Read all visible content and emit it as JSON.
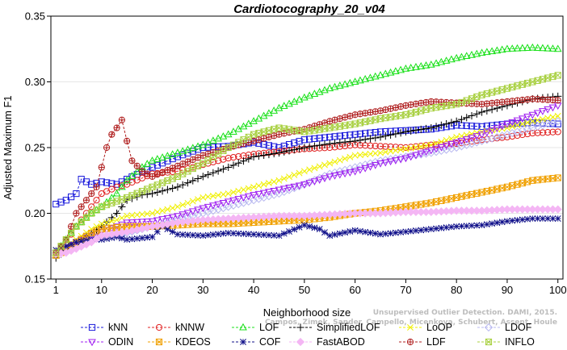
{
  "chart_data": {
    "type": "line",
    "title": "Cardiotocography_20_v04",
    "xlabel": "Neighborhood size",
    "ylabel": "Adjusted Maximum F1",
    "xlim": [
      0,
      101
    ],
    "ylim": [
      0.15,
      0.35
    ],
    "x_ticks": [
      "1",
      "10",
      "20",
      "30",
      "40",
      "50",
      "60",
      "70",
      "80",
      "90",
      "100"
    ],
    "x_tick_values": [
      1,
      10,
      20,
      30,
      40,
      50,
      60,
      70,
      80,
      90,
      100
    ],
    "y_ticks": [
      "0.15",
      "0.20",
      "0.25",
      "0.30",
      "0.35"
    ],
    "y_tick_values": [
      0.15,
      0.2,
      0.25,
      0.3,
      0.35
    ],
    "legend_position": "bottom",
    "series": [
      {
        "name": "kNN",
        "color": "#1a1adb",
        "marker": "square",
        "points": [
          [
            1,
            0.207
          ],
          [
            3,
            0.21
          ],
          [
            5,
            0.215
          ],
          [
            6,
            0.226
          ],
          [
            8,
            0.222
          ],
          [
            10,
            0.224
          ],
          [
            13,
            0.222
          ],
          [
            15,
            0.226
          ],
          [
            20,
            0.235
          ],
          [
            25,
            0.243
          ],
          [
            30,
            0.25
          ],
          [
            35,
            0.251
          ],
          [
            40,
            0.254
          ],
          [
            45,
            0.25
          ],
          [
            50,
            0.256
          ],
          [
            55,
            0.258
          ],
          [
            60,
            0.26
          ],
          [
            65,
            0.262
          ],
          [
            70,
            0.263
          ],
          [
            75,
            0.264
          ],
          [
            80,
            0.267
          ],
          [
            85,
            0.266
          ],
          [
            90,
            0.268
          ],
          [
            95,
            0.269
          ],
          [
            100,
            0.268
          ]
        ]
      },
      {
        "name": "kNNW",
        "color": "#e02020",
        "marker": "circle",
        "points": [
          [
            1,
            0.17
          ],
          [
            3,
            0.178
          ],
          [
            5,
            0.19
          ],
          [
            8,
            0.205
          ],
          [
            10,
            0.215
          ],
          [
            13,
            0.22
          ],
          [
            15,
            0.222
          ],
          [
            20,
            0.23
          ],
          [
            25,
            0.232
          ],
          [
            30,
            0.237
          ],
          [
            35,
            0.242
          ],
          [
            40,
            0.245
          ],
          [
            45,
            0.247
          ],
          [
            50,
            0.249
          ],
          [
            55,
            0.25
          ],
          [
            60,
            0.252
          ],
          [
            65,
            0.251
          ],
          [
            70,
            0.25
          ],
          [
            75,
            0.252
          ],
          [
            80,
            0.253
          ],
          [
            85,
            0.256
          ],
          [
            90,
            0.258
          ],
          [
            95,
            0.261
          ],
          [
            100,
            0.262
          ]
        ]
      },
      {
        "name": "LOF",
        "color": "#18e018",
        "marker": "triangle",
        "points": [
          [
            1,
            0.17
          ],
          [
            3,
            0.18
          ],
          [
            5,
            0.19
          ],
          [
            8,
            0.2
          ],
          [
            10,
            0.205
          ],
          [
            13,
            0.215
          ],
          [
            15,
            0.225
          ],
          [
            18,
            0.235
          ],
          [
            20,
            0.24
          ],
          [
            25,
            0.246
          ],
          [
            30,
            0.252
          ],
          [
            35,
            0.26
          ],
          [
            40,
            0.27
          ],
          [
            45,
            0.28
          ],
          [
            50,
            0.288
          ],
          [
            55,
            0.295
          ],
          [
            60,
            0.3
          ],
          [
            65,
            0.305
          ],
          [
            70,
            0.31
          ],
          [
            75,
            0.313
          ],
          [
            80,
            0.318
          ],
          [
            85,
            0.322
          ],
          [
            90,
            0.325
          ],
          [
            95,
            0.326
          ],
          [
            100,
            0.325
          ]
        ]
      },
      {
        "name": "SimplifiedLOF",
        "color": "#000000",
        "marker": "plus",
        "points": [
          [
            1,
            0.166
          ],
          [
            3,
            0.172
          ],
          [
            5,
            0.178
          ],
          [
            8,
            0.185
          ],
          [
            10,
            0.19
          ],
          [
            13,
            0.2
          ],
          [
            15,
            0.21
          ],
          [
            18,
            0.214
          ],
          [
            20,
            0.215
          ],
          [
            25,
            0.22
          ],
          [
            30,
            0.228
          ],
          [
            35,
            0.235
          ],
          [
            40,
            0.243
          ],
          [
            45,
            0.246
          ],
          [
            50,
            0.25
          ],
          [
            55,
            0.253
          ],
          [
            60,
            0.255
          ],
          [
            65,
            0.258
          ],
          [
            70,
            0.262
          ],
          [
            75,
            0.265
          ],
          [
            80,
            0.27
          ],
          [
            85,
            0.277
          ],
          [
            90,
            0.282
          ],
          [
            95,
            0.287
          ],
          [
            100,
            0.289
          ]
        ]
      },
      {
        "name": "LoOP",
        "color": "#f0f000",
        "marker": "x",
        "points": [
          [
            1,
            0.172
          ],
          [
            3,
            0.175
          ],
          [
            5,
            0.18
          ],
          [
            8,
            0.188
          ],
          [
            10,
            0.192
          ],
          [
            13,
            0.195
          ],
          [
            15,
            0.198
          ],
          [
            20,
            0.2
          ],
          [
            25,
            0.205
          ],
          [
            30,
            0.212
          ],
          [
            35,
            0.215
          ],
          [
            40,
            0.22
          ],
          [
            45,
            0.225
          ],
          [
            50,
            0.232
          ],
          [
            55,
            0.238
          ],
          [
            60,
            0.244
          ],
          [
            65,
            0.246
          ],
          [
            70,
            0.249
          ],
          [
            75,
            0.252
          ],
          [
            80,
            0.258
          ],
          [
            85,
            0.262
          ],
          [
            90,
            0.265
          ],
          [
            95,
            0.27
          ],
          [
            100,
            0.274
          ]
        ]
      },
      {
        "name": "LDOF",
        "color": "#b8b8f0",
        "marker": "diamond",
        "points": [
          [
            1,
            0.17
          ],
          [
            3,
            0.172
          ],
          [
            5,
            0.175
          ],
          [
            8,
            0.18
          ],
          [
            10,
            0.183
          ],
          [
            15,
            0.185
          ],
          [
            20,
            0.19
          ],
          [
            25,
            0.195
          ],
          [
            30,
            0.2
          ],
          [
            35,
            0.205
          ],
          [
            40,
            0.21
          ],
          [
            45,
            0.215
          ],
          [
            50,
            0.222
          ],
          [
            55,
            0.23
          ],
          [
            60,
            0.235
          ],
          [
            65,
            0.24
          ],
          [
            70,
            0.243
          ],
          [
            75,
            0.246
          ],
          [
            80,
            0.25
          ],
          [
            85,
            0.255
          ],
          [
            90,
            0.26
          ],
          [
            95,
            0.265
          ],
          [
            100,
            0.27
          ]
        ]
      },
      {
        "name": "ODIN",
        "color": "#a020f0",
        "marker": "triangle-down",
        "points": [
          [
            1,
            0.17
          ],
          [
            3,
            0.174
          ],
          [
            5,
            0.178
          ],
          [
            8,
            0.183
          ],
          [
            10,
            0.186
          ],
          [
            13,
            0.19
          ],
          [
            15,
            0.193
          ],
          [
            20,
            0.194
          ],
          [
            25,
            0.198
          ],
          [
            30,
            0.204
          ],
          [
            35,
            0.209
          ],
          [
            40,
            0.214
          ],
          [
            45,
            0.218
          ],
          [
            50,
            0.222
          ],
          [
            55,
            0.228
          ],
          [
            60,
            0.232
          ],
          [
            65,
            0.238
          ],
          [
            70,
            0.242
          ],
          [
            75,
            0.248
          ],
          [
            80,
            0.254
          ],
          [
            85,
            0.26
          ],
          [
            90,
            0.268
          ],
          [
            95,
            0.275
          ],
          [
            100,
            0.282
          ]
        ]
      },
      {
        "name": "KDEOS",
        "color": "#f0a000",
        "marker": "square-x",
        "points": [
          [
            1,
            0.168
          ],
          [
            3,
            0.172
          ],
          [
            5,
            0.178
          ],
          [
            8,
            0.185
          ],
          [
            10,
            0.188
          ],
          [
            15,
            0.19
          ],
          [
            20,
            0.19
          ],
          [
            25,
            0.191
          ],
          [
            30,
            0.192
          ],
          [
            35,
            0.192
          ],
          [
            40,
            0.193
          ],
          [
            45,
            0.194
          ],
          [
            50,
            0.195
          ],
          [
            55,
            0.197
          ],
          [
            60,
            0.2
          ],
          [
            65,
            0.202
          ],
          [
            70,
            0.205
          ],
          [
            75,
            0.208
          ],
          [
            80,
            0.212
          ],
          [
            85,
            0.216
          ],
          [
            90,
            0.22
          ],
          [
            95,
            0.225
          ],
          [
            100,
            0.227
          ]
        ]
      },
      {
        "name": "COF",
        "color": "#10108a",
        "marker": "asterisk",
        "points": [
          [
            1,
            0.172
          ],
          [
            3,
            0.175
          ],
          [
            5,
            0.178
          ],
          [
            8,
            0.18
          ],
          [
            10,
            0.18
          ],
          [
            13,
            0.182
          ],
          [
            15,
            0.18
          ],
          [
            20,
            0.182
          ],
          [
            22,
            0.19
          ],
          [
            25,
            0.184
          ],
          [
            30,
            0.183
          ],
          [
            35,
            0.185
          ],
          [
            40,
            0.184
          ],
          [
            45,
            0.183
          ],
          [
            50,
            0.191
          ],
          [
            53,
            0.188
          ],
          [
            55,
            0.183
          ],
          [
            60,
            0.187
          ],
          [
            65,
            0.184
          ],
          [
            70,
            0.186
          ],
          [
            75,
            0.188
          ],
          [
            80,
            0.19
          ],
          [
            85,
            0.191
          ],
          [
            90,
            0.194
          ],
          [
            95,
            0.196
          ],
          [
            100,
            0.196
          ]
        ]
      },
      {
        "name": "FastABOD",
        "color": "#f4b6f4",
        "marker": "diamond-filled",
        "points": [
          [
            1,
            0.169
          ],
          [
            3,
            0.17
          ],
          [
            5,
            0.173
          ],
          [
            8,
            0.178
          ],
          [
            10,
            0.183
          ],
          [
            15,
            0.186
          ],
          [
            20,
            0.19
          ],
          [
            25,
            0.193
          ],
          [
            30,
            0.195
          ],
          [
            35,
            0.196
          ],
          [
            40,
            0.197
          ],
          [
            45,
            0.198
          ],
          [
            50,
            0.198
          ],
          [
            55,
            0.199
          ],
          [
            60,
            0.2
          ],
          [
            65,
            0.2
          ],
          [
            70,
            0.201
          ],
          [
            75,
            0.201
          ],
          [
            80,
            0.202
          ],
          [
            85,
            0.202
          ],
          [
            90,
            0.203
          ],
          [
            95,
            0.203
          ],
          [
            100,
            0.203
          ]
        ]
      },
      {
        "name": "LDF",
        "color": "#b02020",
        "marker": "circle-plus",
        "points": [
          [
            1,
            0.17
          ],
          [
            3,
            0.18
          ],
          [
            5,
            0.2
          ],
          [
            7,
            0.21
          ],
          [
            9,
            0.22
          ],
          [
            11,
            0.25
          ],
          [
            12,
            0.26
          ],
          [
            13,
            0.265
          ],
          [
            14,
            0.271
          ],
          [
            15,
            0.255
          ],
          [
            16,
            0.24
          ],
          [
            18,
            0.232
          ],
          [
            20,
            0.228
          ],
          [
            25,
            0.236
          ],
          [
            30,
            0.244
          ],
          [
            35,
            0.25
          ],
          [
            40,
            0.255
          ],
          [
            45,
            0.26
          ],
          [
            50,
            0.264
          ],
          [
            55,
            0.27
          ],
          [
            60,
            0.275
          ],
          [
            65,
            0.278
          ],
          [
            70,
            0.282
          ],
          [
            75,
            0.285
          ],
          [
            80,
            0.284
          ],
          [
            85,
            0.283
          ],
          [
            90,
            0.285
          ],
          [
            95,
            0.287
          ],
          [
            100,
            0.286
          ]
        ]
      },
      {
        "name": "INFLO",
        "color": "#a8d040",
        "marker": "hourglass",
        "points": [
          [
            1,
            0.17
          ],
          [
            3,
            0.18
          ],
          [
            5,
            0.19
          ],
          [
            8,
            0.2
          ],
          [
            10,
            0.205
          ],
          [
            15,
            0.212
          ],
          [
            20,
            0.22
          ],
          [
            25,
            0.228
          ],
          [
            30,
            0.238
          ],
          [
            35,
            0.25
          ],
          [
            40,
            0.26
          ],
          [
            45,
            0.265
          ],
          [
            50,
            0.262
          ],
          [
            55,
            0.265
          ],
          [
            60,
            0.268
          ],
          [
            65,
            0.272
          ],
          [
            70,
            0.275
          ],
          [
            75,
            0.28
          ],
          [
            80,
            0.283
          ],
          [
            85,
            0.29
          ],
          [
            90,
            0.295
          ],
          [
            95,
            0.3
          ],
          [
            100,
            0.305
          ]
        ]
      }
    ],
    "watermark": [
      "Campos, Zimek, Sander, Campello, Micenkova, Schubert, Assent, Houle",
      "Unsupervised Outlier Detection. DAMI, 2015."
    ]
  }
}
